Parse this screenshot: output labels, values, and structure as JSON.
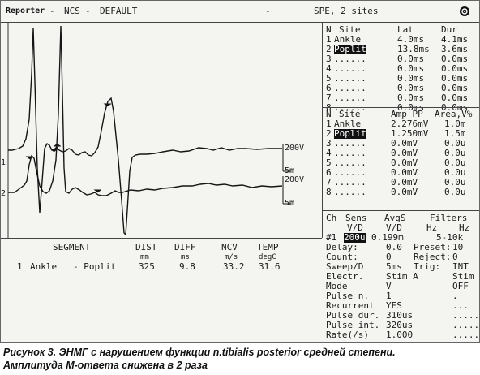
{
  "titlebar": {
    "app": "Reporter",
    "mode": "NCS",
    "profile": "DEFAULT",
    "dash": "-",
    "study": "SPE, 2 sites",
    "icon": "record-circle-icon"
  },
  "plot": {
    "trace1_label": "1",
    "trace2_label": "2",
    "scale1_amp": "200V",
    "scale1_time": "5m",
    "scale2_amp": "200V",
    "scale2_time": "5m"
  },
  "lat_table": {
    "headers": [
      "N",
      "Site",
      "Lat",
      "Dur"
    ],
    "rows": [
      {
        "n": "1",
        "site": "Ankle",
        "lat": "4.0ms",
        "dur": "4.1ms",
        "hl": false
      },
      {
        "n": "2",
        "site": "Poplit",
        "lat": "13.8ms",
        "dur": "3.6ms",
        "hl": true
      },
      {
        "n": "3",
        "site": "......",
        "lat": "0.0ms",
        "dur": "0.0ms",
        "hl": false
      },
      {
        "n": "4",
        "site": "......",
        "lat": "0.0ms",
        "dur": "0.0ms",
        "hl": false
      },
      {
        "n": "5",
        "site": "......",
        "lat": "0.0ms",
        "dur": "0.0ms",
        "hl": false
      },
      {
        "n": "6",
        "site": "......",
        "lat": "0.0ms",
        "dur": "0.0ms",
        "hl": false
      },
      {
        "n": "7",
        "site": "......",
        "lat": "0.0ms",
        "dur": "0.0ms",
        "hl": false
      },
      {
        "n": "8",
        "site": "......",
        "lat": "0.0ms",
        "dur": "0.0ms",
        "hl": false
      }
    ]
  },
  "amp_table": {
    "headers": [
      "N",
      "Site",
      "Amp PP",
      "Area,V%"
    ],
    "rows": [
      {
        "n": "1",
        "site": "Ankle",
        "amp": "2.276mV",
        "area": "1.0m",
        "hl": false
      },
      {
        "n": "2",
        "site": "Poplit",
        "amp": "1.250mV",
        "area": "1.5m",
        "hl": true
      },
      {
        "n": "3",
        "site": "......",
        "amp": "0.0mV",
        "area": "0.0u",
        "hl": false
      },
      {
        "n": "4",
        "site": "......",
        "amp": "0.0mV",
        "area": "0.0u",
        "hl": false
      },
      {
        "n": "5",
        "site": "......",
        "amp": "0.0mV",
        "area": "0.0u",
        "hl": false
      },
      {
        "n": "6",
        "site": "......",
        "amp": "0.0mV",
        "area": "0.0u",
        "hl": false
      },
      {
        "n": "7",
        "site": "......",
        "amp": "0.0mV",
        "area": "0.0u",
        "hl": false
      },
      {
        "n": "8",
        "site": "......",
        "amp": "0.0mV",
        "area": "0.0u",
        "hl": false
      }
    ]
  },
  "settings": {
    "hdr1": {
      "ch": "Ch",
      "sens": "Sens",
      "avgs": "AvgS",
      "filters": "Filters"
    },
    "hdr2": {
      "vd1": "V/D",
      "vd2": "V/D",
      "hz1": "Hz",
      "hz2": "Hz"
    },
    "ch_row": {
      "num": "#1",
      "sens": "200u",
      "avgs": "0.199m",
      "filt": "5-10k"
    },
    "lines": [
      {
        "l": "Delay:",
        "v1": "0.0",
        "l2": "Preset:",
        "v2": "10"
      },
      {
        "l": "Count:",
        "v1": "0",
        "l2": "Reject:",
        "v2": "0"
      },
      {
        "l": "Sweep/D",
        "v1": "5ms",
        "l2": "Trig:",
        "v2": "INT"
      },
      {
        "l": "Electr.",
        "v1": "Stim A",
        "l2": "",
        "v2": "Stim B"
      },
      {
        "l": "Mode",
        "v1": "V",
        "l2": "",
        "v2": "OFF"
      },
      {
        "l": "Pulse n.",
        "v1": "1",
        "l2": "",
        "v2": "."
      },
      {
        "l": "Recurrent",
        "v1": "YES",
        "l2": "",
        "v2": "..."
      },
      {
        "l": "Pulse dur.",
        "v1": "310us",
        "l2": "",
        "v2": "....."
      },
      {
        "l": "Pulse int.",
        "v1": "320us",
        "l2": "",
        "v2": "....."
      },
      {
        "l": "Rate(/s)",
        "v1": "1.000",
        "l2": "",
        "v2": "....."
      }
    ]
  },
  "segment_table": {
    "headers": {
      "segment": "SEGMENT",
      "dist": "DIST",
      "diff": "DIFF",
      "ncv": "NCV",
      "temp": "TEMP"
    },
    "units": {
      "dist": "mm",
      "diff": "ms",
      "ncv": "m/s",
      "temp": "degC"
    },
    "rows": [
      {
        "n": "1",
        "seg": "Ankle   - Poplit",
        "dist": "325",
        "diff": "9.8",
        "ncv": "33.2",
        "temp": "31.6"
      }
    ]
  },
  "caption": {
    "line1": "Рисунок 3. ЭНМГ с нарушением функции n.tibialis posterior средней степени.",
    "line2": "Амплитуда М-ответа снижена в 2 раза"
  }
}
